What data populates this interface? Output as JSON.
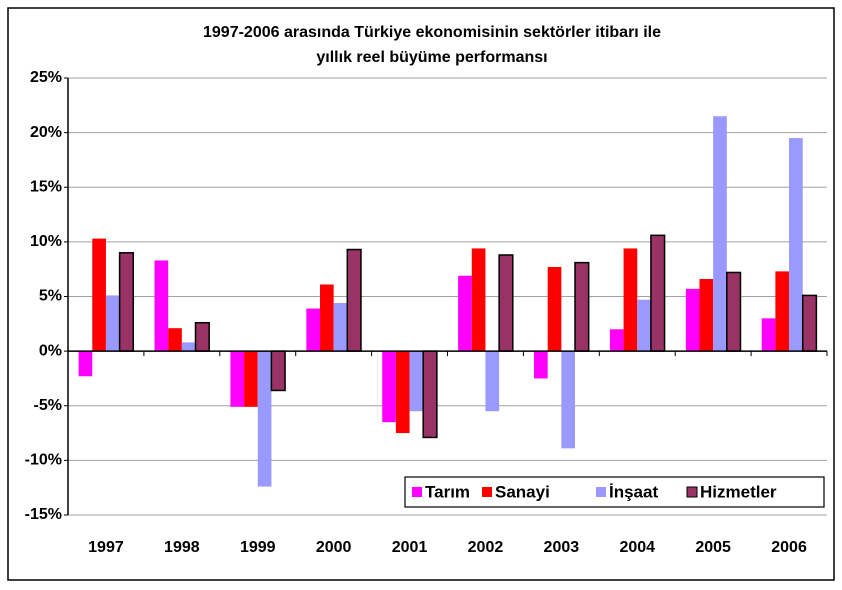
{
  "chart_data": {
    "type": "bar",
    "title": [
      "1997-2006 arasında Türkiye ekonomisinin sektörler itibarı ile",
      "yıllık reel büyüme performansı"
    ],
    "categories": [
      "1997",
      "1998",
      "1999",
      "2000",
      "2001",
      "2002",
      "2003",
      "2004",
      "2005",
      "2006"
    ],
    "series": [
      {
        "name": "Tarım",
        "color": "#ff00ff",
        "values": [
          -2.3,
          8.3,
          -5.1,
          3.9,
          -6.5,
          6.9,
          -2.5,
          2.0,
          5.7,
          3.0
        ]
      },
      {
        "name": "Sanayi",
        "color": "#ff0000",
        "values": [
          10.3,
          2.1,
          -5.1,
          6.1,
          -7.5,
          9.4,
          7.7,
          9.4,
          6.6,
          7.3
        ]
      },
      {
        "name": "İnşaat",
        "color": "#9999ff",
        "values": [
          5.1,
          0.8,
          -12.4,
          4.4,
          -5.5,
          -5.5,
          -8.9,
          4.7,
          21.5,
          19.5
        ]
      },
      {
        "name": "Hizmetler",
        "color": "#993366",
        "values": [
          9.0,
          2.6,
          -3.6,
          9.3,
          -7.9,
          8.8,
          8.1,
          10.6,
          7.2,
          5.1
        ]
      }
    ],
    "ylim": [
      -15,
      25
    ],
    "yticks": [
      {
        "value": -15,
        "label": "-15%"
      },
      {
        "value": -10,
        "label": "-10%"
      },
      {
        "value": -5,
        "label": "-5%"
      },
      {
        "value": 0,
        "label": "0%"
      },
      {
        "value": 5,
        "label": "5%"
      },
      {
        "value": 10,
        "label": "10%"
      },
      {
        "value": 15,
        "label": "15%"
      },
      {
        "value": 20,
        "label": "20%"
      },
      {
        "value": 25,
        "label": "25%"
      }
    ],
    "grid": true,
    "legend": "lower right"
  }
}
